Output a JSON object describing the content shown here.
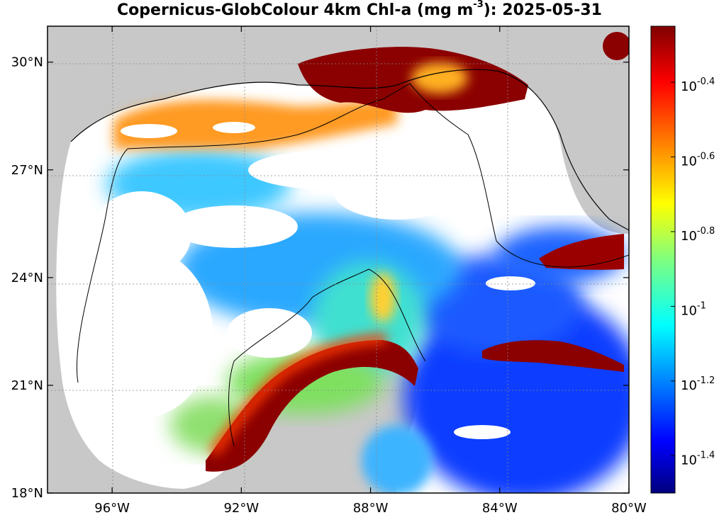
{
  "title": {
    "prefix": "Copernicus-GlobColour 4km Chl-a (mg m",
    "superscript": "-3",
    "suffix": "): 2025-05-31"
  },
  "map": {
    "lon_range": [
      -98,
      -80
    ],
    "lat_range": [
      18,
      31
    ],
    "lat_ticks": [
      {
        "value": 30,
        "label": "30°N"
      },
      {
        "value": 27,
        "label": "27°N"
      },
      {
        "value": 24,
        "label": "24°N"
      },
      {
        "value": 21,
        "label": "21°N"
      },
      {
        "value": 18,
        "label": "18°N"
      }
    ],
    "lon_ticks": [
      {
        "value": -96,
        "label": "96°W"
      },
      {
        "value": -92,
        "label": "92°W"
      },
      {
        "value": -88,
        "label": "88°W"
      },
      {
        "value": -84,
        "label": "84°W"
      },
      {
        "value": -80,
        "label": "80°W"
      }
    ],
    "grid": "dotted",
    "land_color": "#c8c8c8",
    "missing_color": "#ffffff"
  },
  "colorbar": {
    "colormap": "jet",
    "scale": "log10",
    "range_log10": [
      -1.5,
      -0.25
    ],
    "ticks": [
      {
        "value": -0.4,
        "label": "10",
        "exp": "-0.4"
      },
      {
        "value": -0.6,
        "label": "10",
        "exp": "-0.6"
      },
      {
        "value": -0.8,
        "label": "10",
        "exp": "-0.8"
      },
      {
        "value": -1.0,
        "label": "10",
        "exp": "-1"
      },
      {
        "value": -1.2,
        "label": "10",
        "exp": "-1.2"
      },
      {
        "value": -1.4,
        "label": "10",
        "exp": "-1.4"
      }
    ]
  }
}
